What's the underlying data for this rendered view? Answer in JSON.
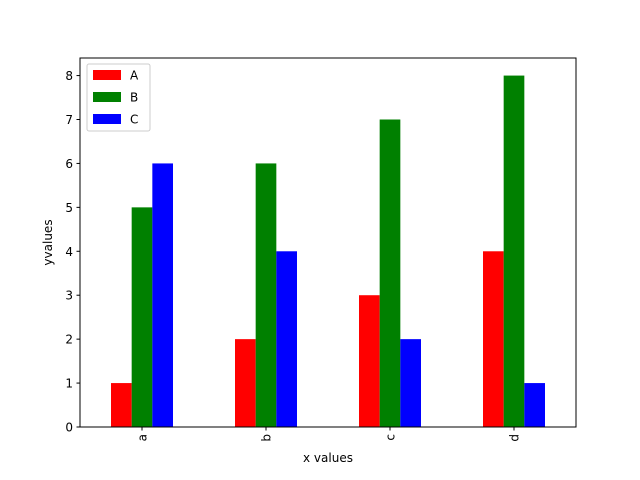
{
  "chart_data": {
    "type": "bar",
    "categories": [
      "a",
      "b",
      "c",
      "d"
    ],
    "series": [
      {
        "name": "A",
        "color": "#ff0000",
        "values": [
          1,
          2,
          3,
          4
        ]
      },
      {
        "name": "B",
        "color": "#008000",
        "values": [
          5,
          6,
          7,
          8
        ]
      },
      {
        "name": "C",
        "color": "#0000ff",
        "values": [
          6,
          4,
          2,
          1
        ]
      }
    ],
    "xlabel": "x values",
    "ylabel": "yvalues",
    "ylim": [
      0,
      8.4
    ],
    "yticks": [
      0,
      1,
      2,
      3,
      4,
      5,
      6,
      7,
      8
    ],
    "grid": false,
    "legend": "top-left",
    "x_tick_rotation": "vertical"
  }
}
